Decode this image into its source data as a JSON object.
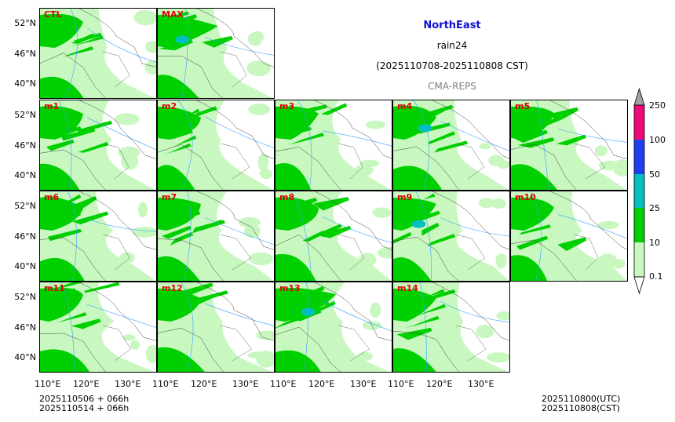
{
  "header": {
    "region": "NorthEast",
    "variable": "rain24",
    "period": "(2025110708-2025110808 CST)",
    "model": "CMA-REPS"
  },
  "panels": [
    "CTL",
    "MAX",
    "m1",
    "m2",
    "m3",
    "m4",
    "m5",
    "m6",
    "m7",
    "m8",
    "m9",
    "m10",
    "m11",
    "m12",
    "m13",
    "m14"
  ],
  "axes": {
    "lat_labels": [
      "52°N",
      "46°N",
      "40°N"
    ],
    "lon_labels": [
      "110°E",
      "120°E",
      "130°E"
    ]
  },
  "colorbar": {
    "labels": [
      "250",
      "100",
      "50",
      "25",
      "10",
      "0.1"
    ],
    "colors": [
      "#a0a0a0",
      "#f0087a",
      "#1f3ef0",
      "#00c0c0",
      "#00d000",
      "#c8f8c0"
    ]
  },
  "footer": {
    "init1": "2025110506  +  066h",
    "init2": "2025110514  +  066h",
    "valid_utc": "2025110800(UTC)",
    "valid_cst": "2025110808(CST)"
  }
}
